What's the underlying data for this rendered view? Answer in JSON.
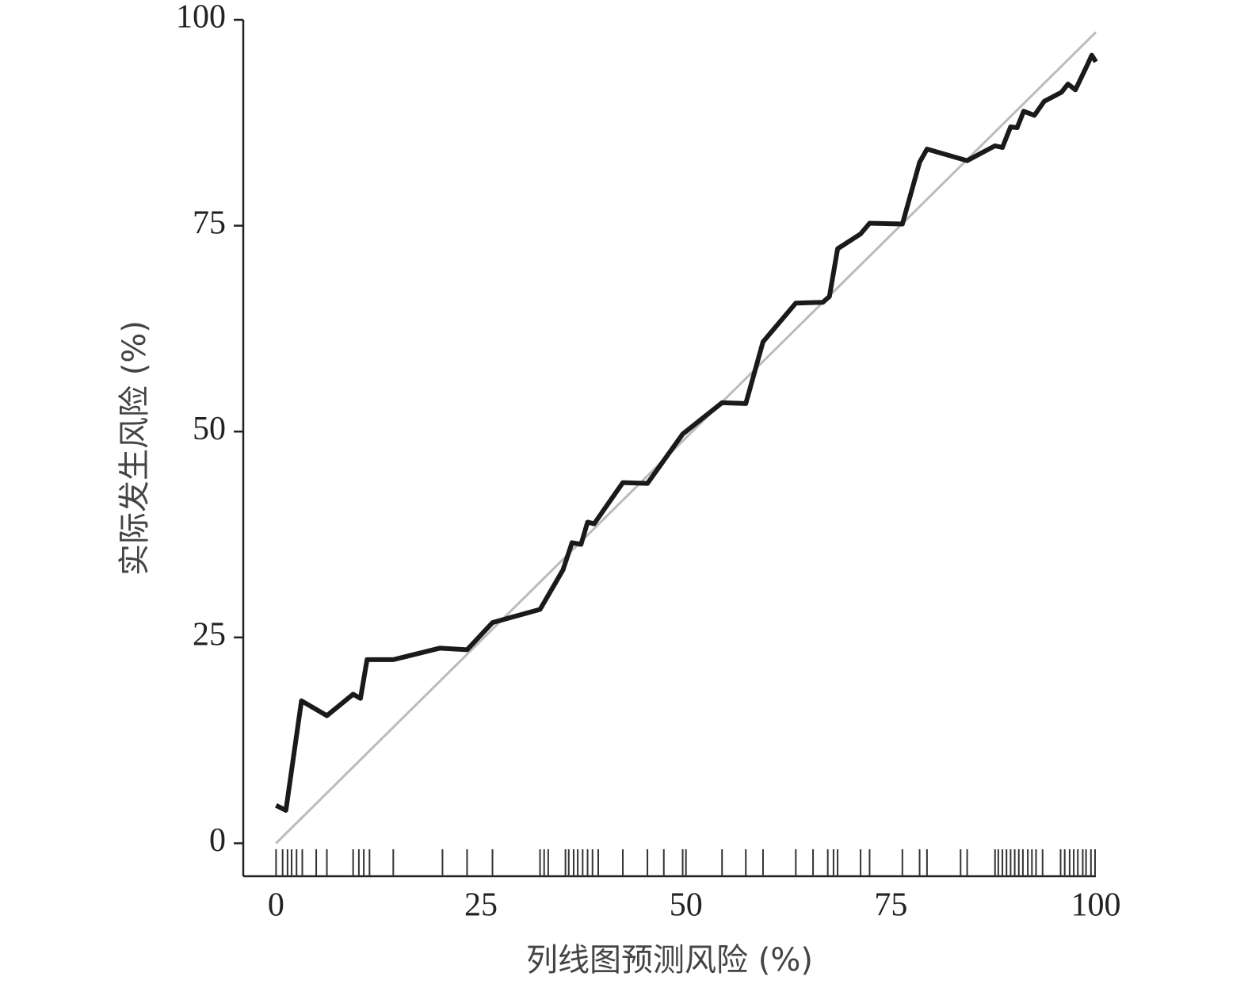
{
  "chart_data": {
    "type": "line",
    "xlabel": "列线图预测风险 (%)",
    "ylabel": "实际发生风险 (%)",
    "xlim": [
      -4,
      100
    ],
    "ylim": [
      -4,
      100
    ],
    "xticks": [
      0,
      25,
      50,
      75,
      100
    ],
    "yticks": [
      0,
      25,
      50,
      75,
      100
    ],
    "series": [
      {
        "color": "#bbbbbb",
        "x": [
          0,
          100
        ],
        "values": [
          0,
          98.5
        ]
      },
      {
        "color": "#1a1a1a",
        "x": [
          0,
          1.2,
          3.1,
          6.2,
          9.4,
          10.3,
          11.1,
          14.3,
          20,
          23.3,
          26.4,
          32.2,
          35.0,
          36.1,
          37.2,
          38.0,
          38.8,
          42.3,
          45.3,
          49.6,
          54.4,
          57.3,
          59.4,
          63.4,
          66.7,
          67.5,
          68.5,
          71.3,
          72.4,
          76.4,
          78.5,
          79.4,
          84.3,
          87.7,
          88.6,
          89.6,
          90.4,
          91.2,
          92.5,
          93.7,
          95.8,
          96.6,
          97.5,
          98.9,
          99.5,
          100
        ],
        "values": [
          4.6,
          4.0,
          17.3,
          15.5,
          18.1,
          17.6,
          22.3,
          22.3,
          23.7,
          23.5,
          26.8,
          28.4,
          33.2,
          36.5,
          36.3,
          39.0,
          38.8,
          43.8,
          43.7,
          49.7,
          53.5,
          53.4,
          60.9,
          65.6,
          65.7,
          66.4,
          72.2,
          74.0,
          75.3,
          75.2,
          82.7,
          84.3,
          82.9,
          84.7,
          84.5,
          87.0,
          86.9,
          88.9,
          88.4,
          90.1,
          91.2,
          92.2,
          91.5,
          94.4,
          95.7,
          94.9
        ]
      }
    ],
    "rug": [
      0,
      0.8,
      1.4,
      1.9,
      2.5,
      3.2,
      4.9,
      6.2,
      9.4,
      10.1,
      10.7,
      11.4,
      14.3,
      20.3,
      23.3,
      26.4,
      32.2,
      32.7,
      33.2,
      35.3,
      35.7,
      36.3,
      36.8,
      37.4,
      38.0,
      38.6,
      39.3,
      42.3,
      45.3,
      47.3,
      49.6,
      50.0,
      54.4,
      57.3,
      59.4,
      63.4,
      65.5,
      67.3,
      68.0,
      68.5,
      71.3,
      72.4,
      76.4,
      78.5,
      79.4,
      83.5,
      84.3,
      87.7,
      88.1,
      88.6,
      89.1,
      89.6,
      90.1,
      90.6,
      91.1,
      91.7,
      92.2,
      92.7,
      93.5,
      95.7,
      96.2,
      96.8,
      97.3,
      97.8,
      98.4,
      98.8,
      99.4,
      99.9
    ],
    "rug_color": "#333333"
  }
}
